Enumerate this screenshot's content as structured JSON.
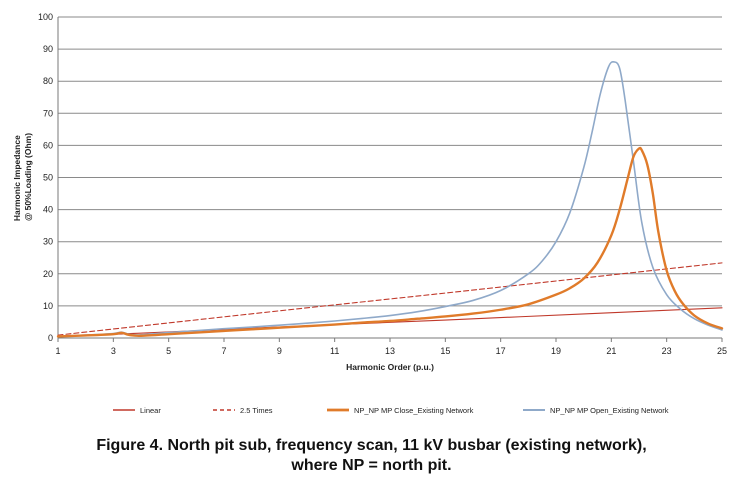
{
  "chart_data": {
    "type": "line",
    "title": "",
    "xlabel": "Harmonic Order (p.u.)",
    "ylabel_lines": [
      "Harmonic Impedance",
      "@ 50%Loading (Ohm)"
    ],
    "xlim": [
      1,
      25
    ],
    "ylim": [
      0,
      100
    ],
    "x_ticks": [
      1,
      3,
      5,
      7,
      9,
      11,
      13,
      15,
      17,
      19,
      21,
      23,
      25
    ],
    "y_ticks": [
      0,
      10,
      20,
      30,
      40,
      50,
      60,
      70,
      80,
      90,
      100
    ],
    "grid": "horizontal",
    "legend_position": "bottom",
    "series": [
      {
        "name": "Linear",
        "color": "#c0392b",
        "dash": "solid",
        "x": [
          1,
          5,
          10,
          15,
          20,
          25
        ],
        "y": [
          0.4,
          1.9,
          3.8,
          5.6,
          7.5,
          9.4
        ]
      },
      {
        "name": "2.5 Times",
        "color": "#c0392b",
        "dash": "dashed",
        "x": [
          1,
          5,
          10,
          15,
          20,
          25
        ],
        "y": [
          0.9,
          4.7,
          9.4,
          14.0,
          18.7,
          23.4
        ]
      },
      {
        "name": "NP_NP MP Close_Existing Network",
        "color": "#e07b2a",
        "dash": "solid",
        "x": [
          1,
          2,
          3,
          3.3,
          3.6,
          4,
          5,
          6,
          7,
          8,
          9,
          10,
          11,
          12,
          13,
          14,
          15,
          16,
          17,
          18,
          19,
          19.5,
          20,
          20.5,
          21,
          21.3,
          21.6,
          21.8,
          22,
          22.1,
          22.3,
          22.5,
          22.7,
          23,
          23.3,
          23.6,
          24,
          24.5,
          25
        ],
        "y": [
          0.5,
          0.8,
          1.2,
          1.6,
          0.9,
          0.7,
          1.2,
          1.7,
          2.2,
          2.7,
          3.2,
          3.7,
          4.2,
          4.8,
          5.3,
          6.0,
          6.7,
          7.6,
          8.8,
          10.5,
          13.5,
          15.5,
          18.5,
          23.5,
          32.0,
          40.0,
          50.0,
          56.5,
          59.0,
          58.5,
          54.0,
          45.0,
          33.0,
          21.0,
          14.5,
          10.5,
          7.0,
          4.5,
          3.0
        ]
      },
      {
        "name": "NP_NP MP Open_Existing Network",
        "color": "#8fa9c9",
        "dash": "solid",
        "x": [
          1,
          2,
          3,
          3.3,
          3.6,
          4,
          5,
          6,
          7,
          8,
          9,
          10,
          11,
          12,
          13,
          14,
          15,
          16,
          17,
          18,
          18.5,
          19,
          19.5,
          20,
          20.3,
          20.6,
          20.9,
          21.1,
          21.3,
          21.5,
          21.8,
          22.1,
          22.5,
          23,
          23.5,
          24,
          24.5,
          25
        ],
        "y": [
          0.5,
          0.9,
          1.4,
          1.8,
          1.1,
          1.0,
          1.7,
          2.3,
          2.9,
          3.4,
          4.0,
          4.6,
          5.3,
          6.1,
          7.0,
          8.2,
          9.8,
          11.7,
          14.8,
          20.0,
          24.0,
          30.0,
          39.0,
          53.0,
          64.0,
          76.0,
          84.5,
          86.0,
          84.0,
          74.0,
          55.0,
          36.0,
          22.0,
          13.5,
          9.0,
          6.0,
          4.0,
          2.5
        ]
      }
    ]
  },
  "caption": {
    "line1": "Figure 4. North pit sub, frequency scan, 11 kV busbar (existing network),",
    "line2": "where NP = north pit."
  }
}
